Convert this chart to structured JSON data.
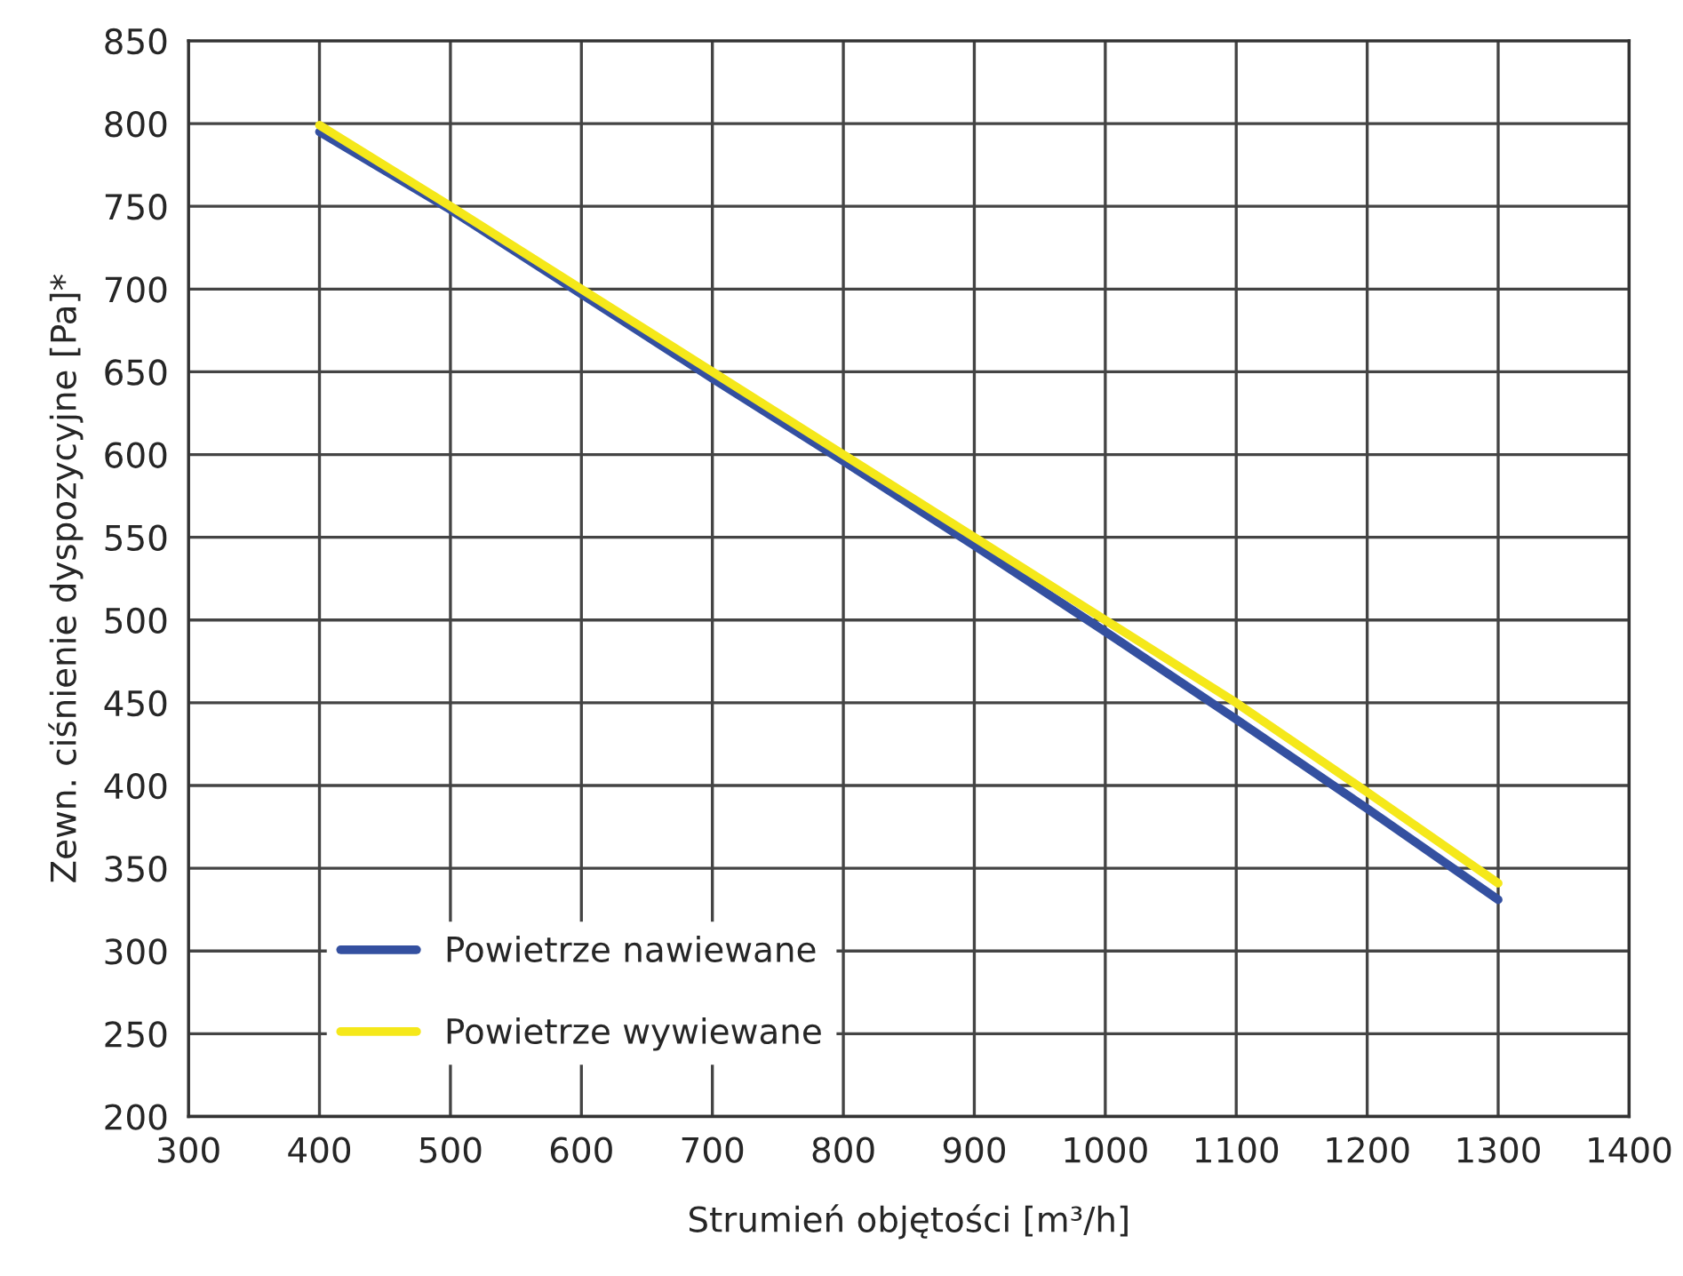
{
  "chart_data": {
    "type": "line",
    "xlabel": "Strumień objętości [m³/h]",
    "ylabel": "Zewn. ciśnienie dyspozycyjne [Pa]*",
    "x": [
      400,
      500,
      600,
      700,
      800,
      900,
      1000,
      1100,
      1200,
      1300
    ],
    "series": [
      {
        "name": "Powietrze nawiewane",
        "color": "#3450a0",
        "values": [
          795,
          748,
          697,
          646,
          596,
          545,
          493,
          440,
          386,
          331
        ]
      },
      {
        "name": "Powietrze wywiewane",
        "color": "#f5e81a",
        "values": [
          799,
          750,
          700,
          650,
          600,
          550,
          500,
          450,
          396,
          341
        ]
      }
    ],
    "xlim": [
      300,
      1400
    ],
    "xticks": [
      300,
      400,
      500,
      600,
      700,
      800,
      900,
      1000,
      1100,
      1200,
      1300,
      1400
    ],
    "ylim": [
      200,
      850
    ],
    "yticks": [
      200,
      250,
      300,
      350,
      400,
      450,
      500,
      550,
      600,
      650,
      700,
      750,
      800,
      850
    ],
    "grid": true,
    "legend": "bottom left",
    "line_style": "solid",
    "marker": "none"
  }
}
